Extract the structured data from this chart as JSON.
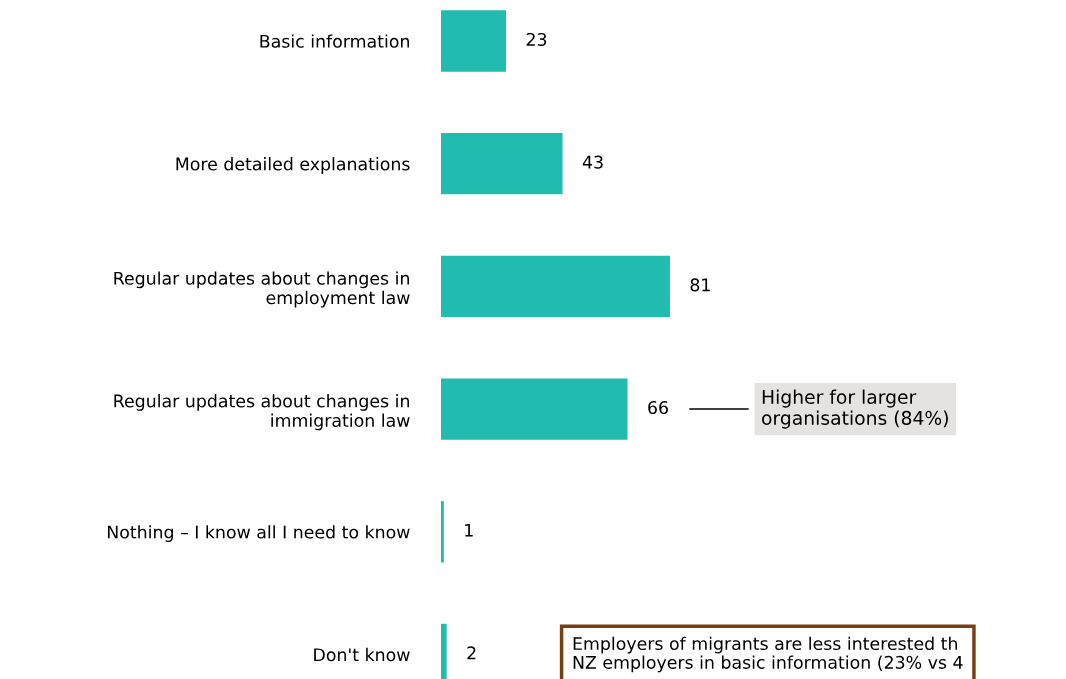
{
  "chart_data": {
    "type": "bar",
    "orientation": "horizontal",
    "categories": [
      "Basic information",
      "More detailed explanations",
      "Regular updates about changes in\nemployment law",
      "Regular updates about changes in\nimmigration law",
      "Nothing – I know all I need to know",
      "Don't know"
    ],
    "values": [
      23,
      43,
      81,
      66,
      1,
      2
    ],
    "color": "#22bbb0",
    "data_labels": true,
    "tick_labels": "y",
    "grid": false,
    "annotations": [
      "Higher for larger\norganisations (84%)",
      "Employers of migrants are less interested th\nNZ employers in basic information (23% vs 4"
    ]
  }
}
